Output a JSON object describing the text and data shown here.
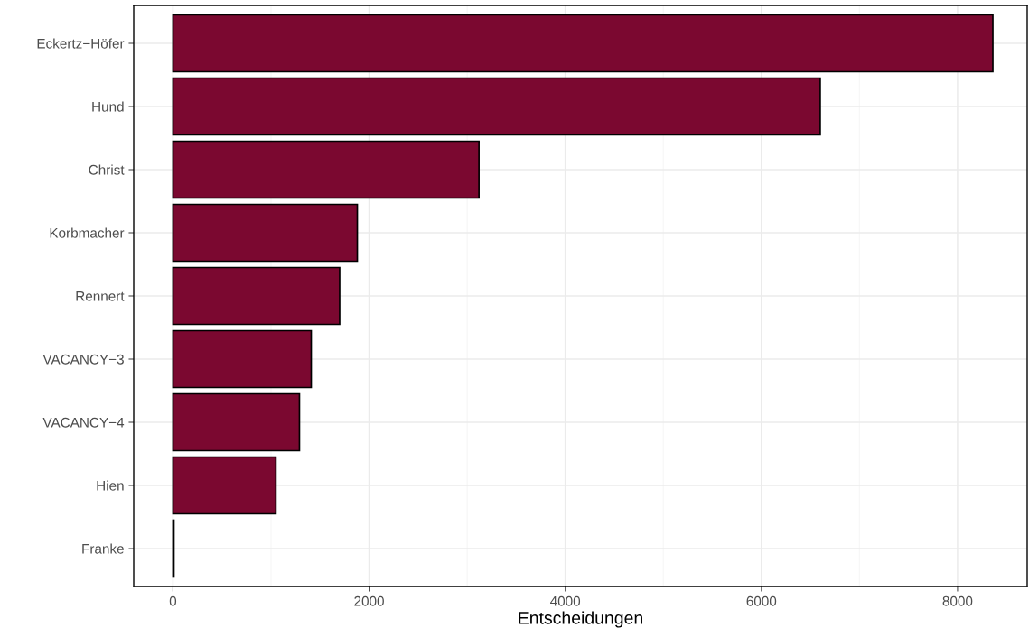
{
  "chart_data": {
    "type": "bar",
    "orientation": "horizontal",
    "xlabel": "Entscheidungen",
    "categories": [
      "Eckertz−Höfer",
      "Hund",
      "Christ",
      "Korbmacher",
      "Rennert",
      "VACANCY−3",
      "VACANCY−4",
      "Hien",
      "Franke"
    ],
    "values": [
      8360,
      6600,
      3120,
      1880,
      1700,
      1410,
      1290,
      1050,
      10
    ],
    "color": "#7b0830",
    "xlim": [
      -400,
      8710
    ],
    "xticks": [
      0,
      2000,
      4000,
      6000,
      8000
    ],
    "grid": true
  }
}
